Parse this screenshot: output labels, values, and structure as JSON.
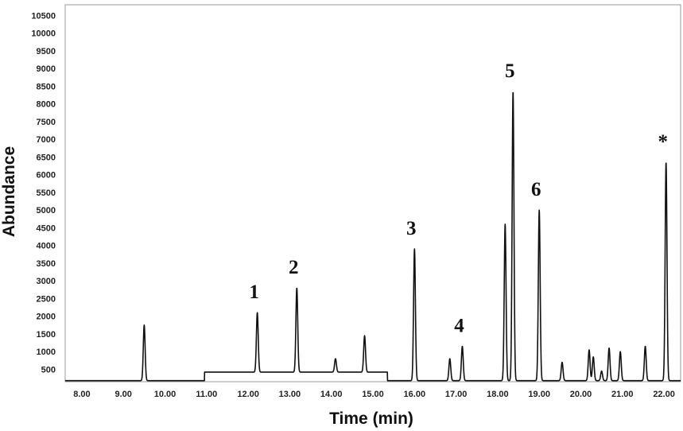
{
  "chart_data": {
    "type": "line",
    "title": "",
    "xlabel": "Time (min)",
    "ylabel": "Abundance",
    "xlim": [
      7.6,
      22.4
    ],
    "ylim": [
      150,
      10800
    ],
    "x_ticks": [
      "8.00",
      "9.00",
      "10.00",
      "11.00",
      "12.00",
      "13.00",
      "14.00",
      "15.00",
      "16.00",
      "17.00",
      "18.00",
      "19.00",
      "20.00",
      "21.00",
      "22.00"
    ],
    "y_ticks": [
      "500",
      "1000",
      "1500",
      "2000",
      "2500",
      "3000",
      "3500",
      "4000",
      "4500",
      "5000",
      "5500",
      "6000",
      "6500",
      "7000",
      "7500",
      "8000",
      "8500",
      "9000",
      "9500",
      "10000",
      "10500"
    ],
    "baseline": 180,
    "raised_baseline": {
      "x_start": 10.95,
      "x_end": 15.35,
      "level": 420
    },
    "peaks": [
      {
        "x": 9.5,
        "y": 1750,
        "label": ""
      },
      {
        "x": 12.22,
        "y": 2100,
        "label": "1"
      },
      {
        "x": 13.17,
        "y": 2800,
        "label": "2"
      },
      {
        "x": 14.1,
        "y": 800,
        "label": ""
      },
      {
        "x": 14.8,
        "y": 1450,
        "label": ""
      },
      {
        "x": 16.0,
        "y": 3900,
        "label": "3"
      },
      {
        "x": 16.85,
        "y": 800,
        "label": ""
      },
      {
        "x": 17.15,
        "y": 1150,
        "label": "4"
      },
      {
        "x": 18.18,
        "y": 4600,
        "label": ""
      },
      {
        "x": 18.37,
        "y": 8350,
        "label": "5"
      },
      {
        "x": 19.0,
        "y": 5000,
        "label": "6"
      },
      {
        "x": 19.55,
        "y": 700,
        "label": ""
      },
      {
        "x": 20.2,
        "y": 1050,
        "label": ""
      },
      {
        "x": 20.3,
        "y": 850,
        "label": ""
      },
      {
        "x": 20.5,
        "y": 450,
        "label": ""
      },
      {
        "x": 20.68,
        "y": 1100,
        "label": ""
      },
      {
        "x": 20.95,
        "y": 1000,
        "label": ""
      },
      {
        "x": 21.55,
        "y": 1150,
        "label": ""
      },
      {
        "x": 22.05,
        "y": 6350,
        "label": "*"
      }
    ],
    "line_color": "#111111",
    "grid": false,
    "legend": "none"
  }
}
